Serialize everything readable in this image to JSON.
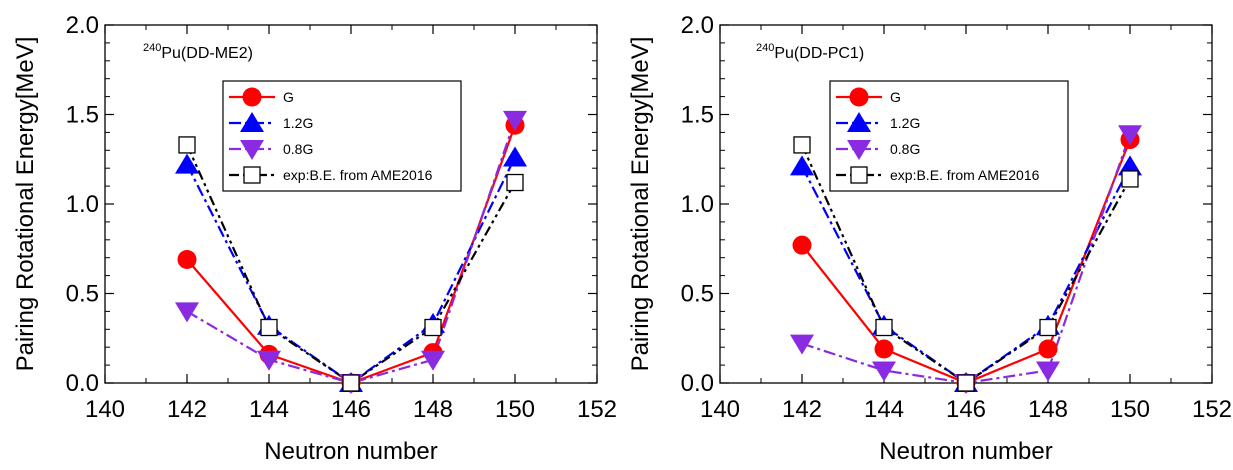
{
  "chart_data": [
    {
      "type": "line",
      "panel_label": {
        "sup": "240",
        "text": "Pu(DD-ME2)"
      },
      "xlabel": "Neutron number",
      "ylabel": "Pairing Rotational Energy[MeV]",
      "xlim": [
        140,
        152
      ],
      "ylim": [
        0,
        2.0
      ],
      "xticks": [
        "140",
        "142",
        "144",
        "146",
        "148",
        "150",
        "152"
      ],
      "yticks": [
        "0.0",
        "0.5",
        "1.0",
        "1.5",
        "2.0"
      ],
      "grid": false,
      "legend_position": "upper-center",
      "series": [
        {
          "name": "G",
          "color": "#ff0000",
          "marker": "circle",
          "dash": "solid",
          "x": [
            142,
            144,
            146,
            148,
            150
          ],
          "y": [
            0.69,
            0.16,
            0.0,
            0.17,
            1.44
          ]
        },
        {
          "name": "1.2G",
          "color": "#0000ff",
          "marker": "triangle-up",
          "dash": "dash-dot",
          "x": [
            142,
            144,
            146,
            148,
            150
          ],
          "y": [
            1.22,
            0.32,
            0.0,
            0.33,
            1.26
          ]
        },
        {
          "name": "0.8G",
          "color": "#8a2be2",
          "marker": "triangle-down",
          "dash": "dash-dot",
          "x": [
            142,
            144,
            146,
            148,
            150
          ],
          "y": [
            0.4,
            0.13,
            0.0,
            0.13,
            1.47
          ]
        },
        {
          "name": "exp:B.E. from AME2016",
          "color": "#000000",
          "marker": "square-open",
          "dash": "dash-dot-dot",
          "x": [
            142,
            144,
            146,
            148,
            150
          ],
          "y": [
            1.33,
            0.31,
            0.0,
            0.31,
            1.12
          ]
        }
      ]
    },
    {
      "type": "line",
      "panel_label": {
        "sup": "240",
        "text": "Pu(DD-PC1)"
      },
      "xlabel": "Neutron number",
      "ylabel": "Pairing Rotational Energy[MeV]",
      "xlim": [
        140,
        152
      ],
      "ylim": [
        0,
        2.0
      ],
      "xticks": [
        "140",
        "142",
        "144",
        "146",
        "148",
        "150",
        "152"
      ],
      "yticks": [
        "0.0",
        "0.5",
        "1.0",
        "1.5",
        "2.0"
      ],
      "grid": false,
      "legend_position": "upper-center",
      "series": [
        {
          "name": "G",
          "color": "#ff0000",
          "marker": "circle",
          "dash": "solid",
          "x": [
            142,
            144,
            146,
            148,
            150
          ],
          "y": [
            0.77,
            0.19,
            0.0,
            0.19,
            1.36
          ]
        },
        {
          "name": "1.2G",
          "color": "#0000ff",
          "marker": "triangle-up",
          "dash": "dash-dot",
          "x": [
            142,
            144,
            146,
            148,
            150
          ],
          "y": [
            1.21,
            0.32,
            0.0,
            0.32,
            1.21
          ]
        },
        {
          "name": "0.8G",
          "color": "#8a2be2",
          "marker": "triangle-down",
          "dash": "dash-dot",
          "x": [
            142,
            144,
            146,
            148,
            150
          ],
          "y": [
            0.22,
            0.07,
            0.0,
            0.07,
            1.39
          ]
        },
        {
          "name": "exp:B.E. from AME2016",
          "color": "#000000",
          "marker": "square-open",
          "dash": "dash-dot-dot",
          "x": [
            142,
            144,
            146,
            148,
            150
          ],
          "y": [
            1.33,
            0.31,
            0.0,
            0.31,
            1.14
          ]
        }
      ]
    }
  ]
}
